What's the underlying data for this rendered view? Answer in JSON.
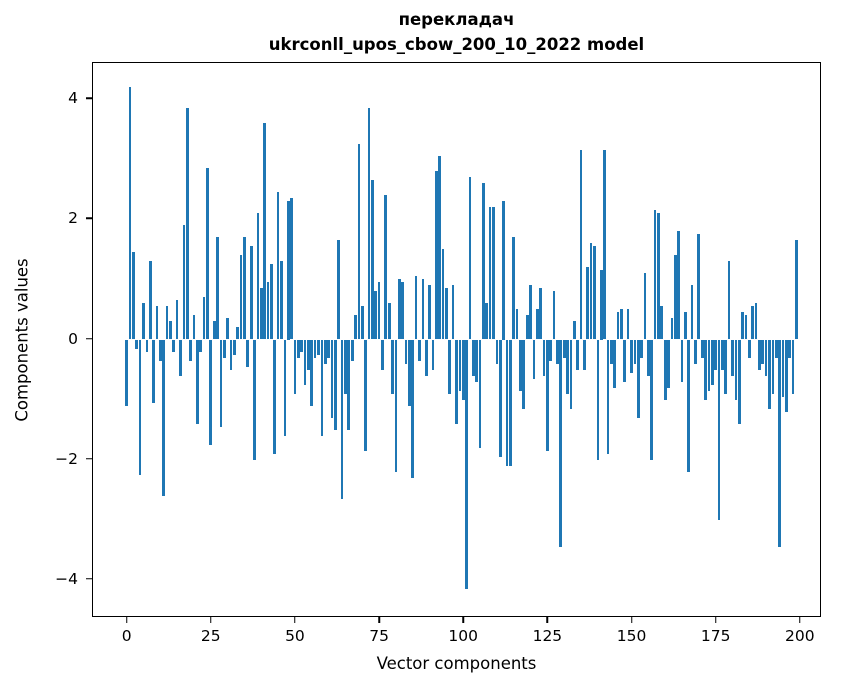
{
  "chart_data": {
    "type": "bar",
    "title_lines": [
      "перекладач",
      "ukrconll_upos_cbow_200_10_2022 model"
    ],
    "title": "перекладач ukrconll_upos_cbow_200_10_2022 model",
    "xlabel": "Vector components",
    "ylabel": "Components values",
    "bar_color": "#1f77b4",
    "grid": false,
    "legend": false,
    "x": {
      "start": 0,
      "end": 199,
      "step": 1
    },
    "xlim": [
      -10,
      206
    ],
    "ylim": [
      -4.6,
      4.6
    ],
    "x_ticks": [
      0,
      25,
      50,
      75,
      100,
      125,
      150,
      175,
      200
    ],
    "x_tick_labels": [
      "0",
      "25",
      "50",
      "75",
      "100",
      "125",
      "150",
      "175",
      "200"
    ],
    "y_ticks": [
      -4,
      -2,
      0,
      2,
      4
    ],
    "y_tick_labels": [
      "−4",
      "−2",
      "0",
      "2",
      "4"
    ],
    "values": [
      -1.1,
      4.2,
      1.45,
      -0.15,
      -2.25,
      0.6,
      -0.2,
      1.3,
      -1.05,
      0.55,
      -0.35,
      -2.6,
      0.55,
      0.3,
      -0.2,
      0.65,
      -0.6,
      1.9,
      3.85,
      -0.35,
      0.4,
      -1.4,
      -0.2,
      0.7,
      2.85,
      -1.75,
      0.3,
      1.7,
      -1.45,
      -0.3,
      0.35,
      -0.5,
      -0.25,
      0.2,
      1.4,
      1.7,
      -0.45,
      1.55,
      -2.0,
      2.1,
      0.85,
      3.6,
      0.95,
      1.25,
      -1.9,
      2.45,
      1.3,
      -1.6,
      2.3,
      2.35,
      -0.9,
      -0.3,
      -0.2,
      -0.75,
      -0.5,
      -1.1,
      -0.3,
      -0.25,
      -1.6,
      -0.4,
      -0.3,
      -1.3,
      -1.5,
      1.65,
      -2.65,
      -0.9,
      -1.5,
      -0.35,
      0.4,
      3.25,
      0.55,
      -1.85,
      3.85,
      2.65,
      0.8,
      0.95,
      -0.5,
      2.4,
      0.6,
      -0.9,
      -2.2,
      1.0,
      0.95,
      -0.4,
      -1.1,
      -2.3,
      1.05,
      -0.35,
      1.0,
      -0.6,
      0.9,
      -0.5,
      2.8,
      3.05,
      1.5,
      0.85,
      -0.9,
      0.9,
      -1.4,
      -0.85,
      -1.0,
      -4.15,
      2.7,
      -0.6,
      -0.7,
      -1.8,
      2.6,
      0.6,
      2.2,
      2.2,
      -0.4,
      -1.95,
      2.3,
      -2.1,
      -2.1,
      1.7,
      0.5,
      -0.85,
      -1.15,
      0.4,
      0.9,
      -0.65,
      0.5,
      0.85,
      -0.6,
      -1.85,
      -0.35,
      0.8,
      -0.4,
      -3.45,
      -0.3,
      -0.9,
      -1.15,
      0.3,
      -0.5,
      3.15,
      -0.5,
      1.2,
      1.6,
      1.55,
      -2.0,
      1.15,
      3.15,
      -1.9,
      -0.4,
      -0.8,
      0.45,
      0.5,
      -0.7,
      0.5,
      -0.55,
      -0.4,
      -1.3,
      -0.3,
      1.1,
      -0.6,
      -2.0,
      2.15,
      2.1,
      0.55,
      -1.0,
      -0.8,
      0.35,
      1.4,
      1.8,
      -0.7,
      0.45,
      -2.2,
      0.9,
      -0.4,
      1.75,
      -0.3,
      -1.0,
      -0.85,
      -0.75,
      -0.5,
      -3.0,
      -0.5,
      -0.9,
      1.3,
      -0.6,
      -1.0,
      -1.4,
      0.45,
      0.4,
      -0.3,
      0.55,
      0.6,
      -0.5,
      -0.4,
      -0.6,
      -1.15,
      -0.9,
      -0.3,
      -3.45,
      -0.95,
      -1.2,
      -0.3,
      -0.9,
      1.65
    ]
  }
}
